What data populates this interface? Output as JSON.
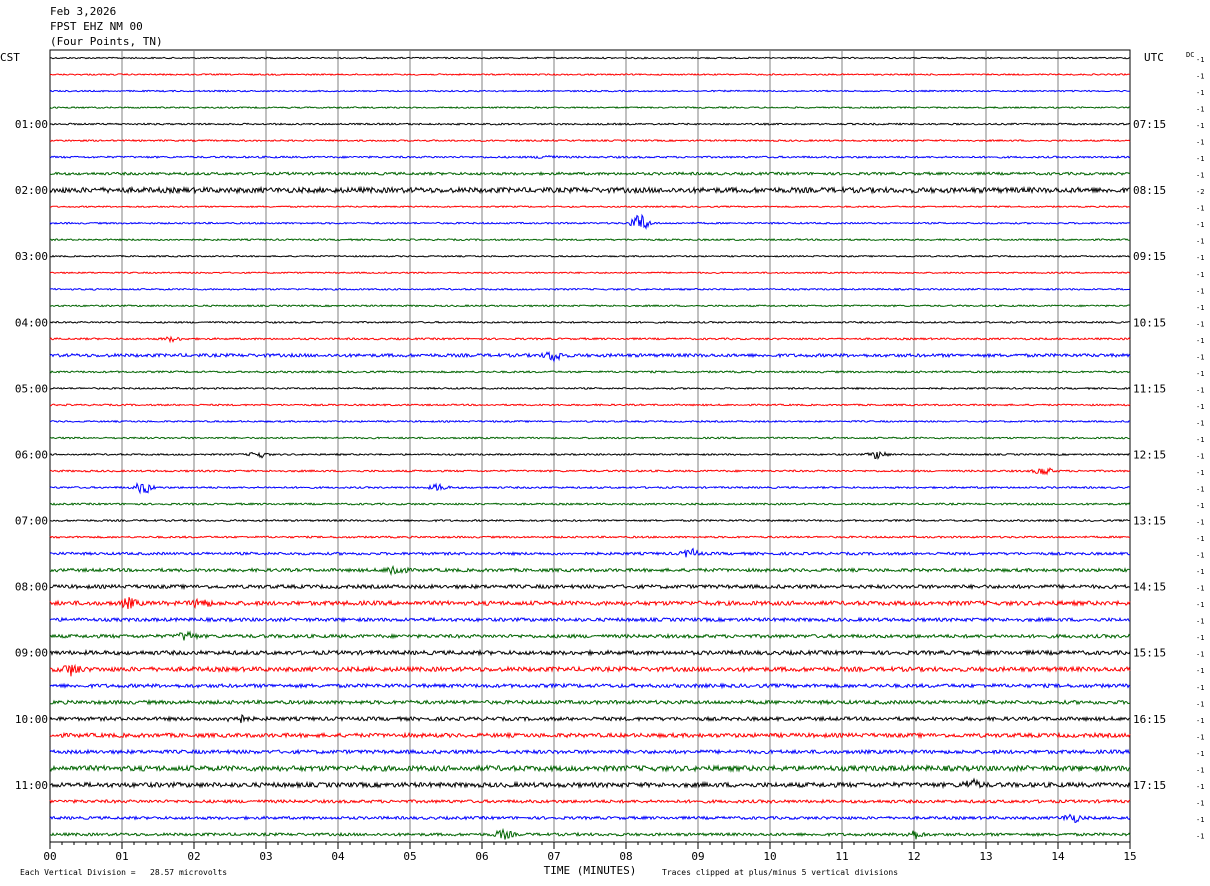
{
  "header": {
    "date": "Feb 3,2026",
    "station": "FPST EHZ NM 00",
    "location": "(Four Points, TN)"
  },
  "chart_data": {
    "type": "line",
    "left_timezone": "CST",
    "right_timezone": "UTC",
    "dc_label": "DC",
    "xlabel": "TIME (MINUTES)",
    "x_ticks": [
      "00",
      "01",
      "02",
      "03",
      "04",
      "05",
      "06",
      "07",
      "08",
      "09",
      "10",
      "11",
      "12",
      "13",
      "14",
      "15"
    ],
    "xlim": [
      0,
      15
    ],
    "trace_colors": [
      "#000000",
      "#ff0000",
      "#0000ff",
      "#006400"
    ],
    "left_hour_labels": [
      {
        "row": 4,
        "text": "01:00"
      },
      {
        "row": 8,
        "text": "02:00"
      },
      {
        "row": 12,
        "text": "03:00"
      },
      {
        "row": 16,
        "text": "04:00"
      },
      {
        "row": 20,
        "text": "05:00"
      },
      {
        "row": 24,
        "text": "06:00"
      },
      {
        "row": 28,
        "text": "07:00"
      },
      {
        "row": 32,
        "text": "08:00"
      },
      {
        "row": 36,
        "text": "09:00"
      },
      {
        "row": 40,
        "text": "10:00"
      },
      {
        "row": 44,
        "text": "11:00"
      }
    ],
    "right_hour_labels": [
      {
        "row": 4,
        "text": "07:15"
      },
      {
        "row": 8,
        "text": "08:15"
      },
      {
        "row": 12,
        "text": "09:15"
      },
      {
        "row": 16,
        "text": "10:15"
      },
      {
        "row": 20,
        "text": "11:15"
      },
      {
        "row": 24,
        "text": "12:15"
      },
      {
        "row": 28,
        "text": "13:15"
      },
      {
        "row": 32,
        "text": "14:15"
      },
      {
        "row": 36,
        "text": "15:15"
      },
      {
        "row": 40,
        "text": "16:15"
      },
      {
        "row": 44,
        "text": "17:15"
      }
    ],
    "dc_offsets": [
      "-1",
      "-1",
      "-1",
      "-1",
      "-1",
      "-1",
      "-1",
      "-1",
      "-2",
      "-1",
      "-1",
      "-1",
      "-1",
      "-1",
      "-1",
      "-1",
      "-1",
      "-1",
      "-1",
      "-1",
      "-1",
      "-1",
      "-1",
      "-1",
      "-1",
      "-1",
      "-1",
      "-1",
      "-1",
      "-1",
      "-1",
      "-1",
      "-1",
      "-1",
      "-1",
      "-1",
      "-1",
      "-1",
      "-1",
      "-1",
      "-1",
      "-1",
      "-1",
      "-1",
      "-1",
      "-1",
      "-1",
      "-1"
    ],
    "row_noise": [
      0.7,
      0.7,
      0.7,
      0.7,
      0.8,
      0.8,
      0.9,
      1.3,
      2.6,
      0.7,
      0.8,
      0.8,
      0.7,
      0.7,
      0.8,
      0.8,
      0.8,
      0.9,
      1.6,
      0.9,
      0.8,
      0.8,
      0.8,
      0.8,
      0.8,
      0.9,
      0.9,
      0.9,
      0.9,
      0.9,
      1.3,
      1.6,
      1.8,
      2.1,
      1.7,
      1.7,
      2.0,
      2.2,
      1.8,
      1.8,
      1.8,
      2.0,
      1.8,
      2.6,
      2.3,
      1.5,
      1.4,
      1.4
    ],
    "events": [
      {
        "row": 6,
        "minute": 6.9,
        "amplitude": 2
      },
      {
        "row": 10,
        "minute": 8.2,
        "amplitude": 9
      },
      {
        "row": 17,
        "minute": 1.7,
        "amplitude": 2
      },
      {
        "row": 18,
        "minute": 7.0,
        "amplitude": 5
      },
      {
        "row": 24,
        "minute": 2.9,
        "amplitude": 3
      },
      {
        "row": 24,
        "minute": 11.5,
        "amplitude": 4
      },
      {
        "row": 25,
        "minute": 13.8,
        "amplitude": 4
      },
      {
        "row": 26,
        "minute": 1.3,
        "amplitude": 6
      },
      {
        "row": 26,
        "minute": 5.4,
        "amplitude": 3
      },
      {
        "row": 30,
        "minute": 8.9,
        "amplitude": 4
      },
      {
        "row": 31,
        "minute": 4.8,
        "amplitude": 6
      },
      {
        "row": 33,
        "minute": 1.1,
        "amplitude": 4
      },
      {
        "row": 33,
        "minute": 2.1,
        "amplitude": 4
      },
      {
        "row": 35,
        "minute": 1.9,
        "amplitude": 4
      },
      {
        "row": 37,
        "minute": 0.3,
        "amplitude": 5
      },
      {
        "row": 40,
        "minute": 2.6,
        "amplitude": 4
      },
      {
        "row": 44,
        "minute": 12.8,
        "amplitude": 4
      },
      {
        "row": 46,
        "minute": 14.2,
        "amplitude": 4
      },
      {
        "row": 47,
        "minute": 6.3,
        "amplitude": 4
      },
      {
        "row": 47,
        "minute": 12.0,
        "amplitude": 4
      }
    ],
    "footer_left": "Each Vertical Division =   28.57 microvolts",
    "footer_right": "Traces clipped at plus/minus 5 vertical divisions"
  }
}
